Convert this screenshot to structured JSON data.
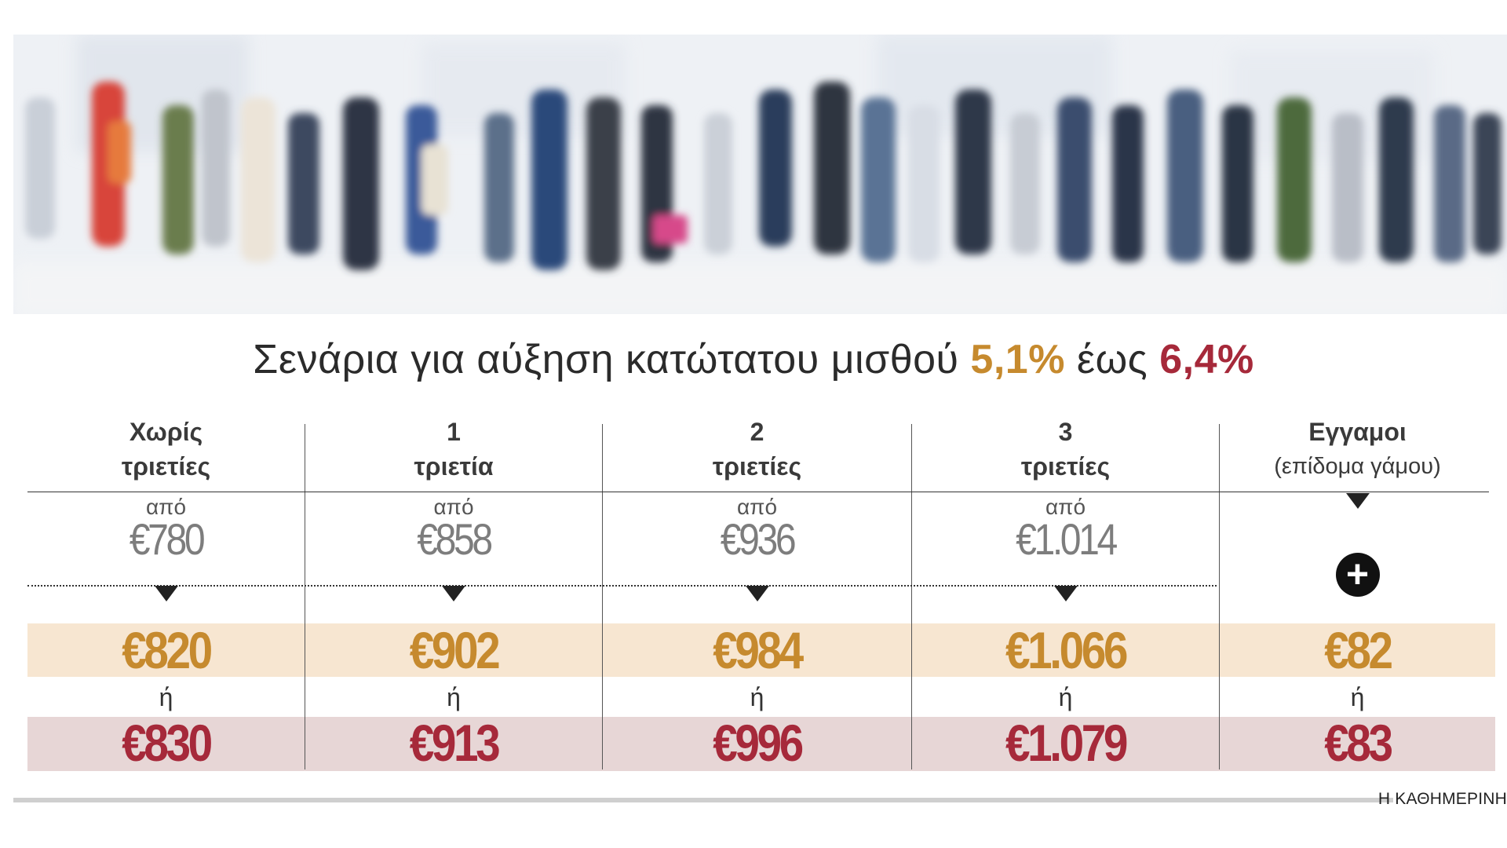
{
  "headline": {
    "text": "Σενάρια για αύξηση κατώτατου μισθού ",
    "pct_low": "5,1%",
    "connector": " έως ",
    "pct_high": "6,4%"
  },
  "columns": [
    {
      "header_line1": "Χωρίς",
      "header_line2": "τριετίες",
      "from_label": "από",
      "from_value": "€780",
      "value_low": "€820",
      "or_label": "ή",
      "value_high": "€830"
    },
    {
      "header_line1": "1",
      "header_line2": "τριετία",
      "from_label": "από",
      "from_value": "€858",
      "value_low": "€902",
      "or_label": "ή",
      "value_high": "€913"
    },
    {
      "header_line1": "2",
      "header_line2": "τριετίες",
      "from_label": "από",
      "from_value": "€936",
      "value_low": "€984",
      "or_label": "ή",
      "value_high": "€996"
    },
    {
      "header_line1": "3",
      "header_line2": "τριετίες",
      "from_label": "από",
      "from_value": "€1.014",
      "value_low": "€1.066",
      "or_label": "ή",
      "value_high": "€1.079"
    },
    {
      "header_line1": "Εγγαμοι",
      "header_line2": "(επίδομα γάμου)",
      "plus_icon": "plus-circle-icon",
      "value_low": "€82",
      "or_label": "ή",
      "value_high": "€83"
    }
  ],
  "credit": "Η ΚΑΘΗΜΕΡΙΝΗ",
  "colors": {
    "gold": "#c68a2e",
    "crimson": "#a6293a",
    "band_gold": "#f7e6d1",
    "band_crimson": "#e7d6d6"
  }
}
